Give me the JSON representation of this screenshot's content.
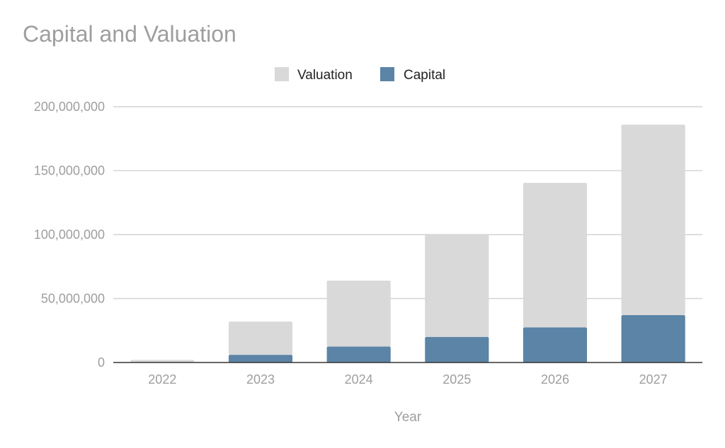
{
  "chart_data": {
    "type": "bar",
    "stacked": true,
    "title": "Capital and Valuation",
    "xlabel": "Year",
    "ylabel": "",
    "categories": [
      "2022",
      "2023",
      "2024",
      "2025",
      "2026",
      "2027"
    ],
    "series": [
      {
        "name": "Capital",
        "values": [
          0,
          6000000,
          12500000,
          20000000,
          27500000,
          37000000
        ],
        "color": "#5b84a6"
      },
      {
        "name": "Valuation",
        "values": [
          2000000,
          26000000,
          51500000,
          80000000,
          113000000,
          149000000
        ],
        "color": "#d9d9d9"
      }
    ],
    "legend_order": [
      "Valuation",
      "Capital"
    ],
    "ylim": [
      0,
      200000000
    ],
    "yticks": [
      0,
      50000000,
      100000000,
      150000000,
      200000000
    ],
    "ytick_labels": [
      "0",
      "50,000,000",
      "100,000,000",
      "150,000,000",
      "200,000,000"
    ],
    "grid": true,
    "legend_position": "top-center",
    "gridline_color": "#d4d4d4",
    "axis_color": "#333333"
  }
}
